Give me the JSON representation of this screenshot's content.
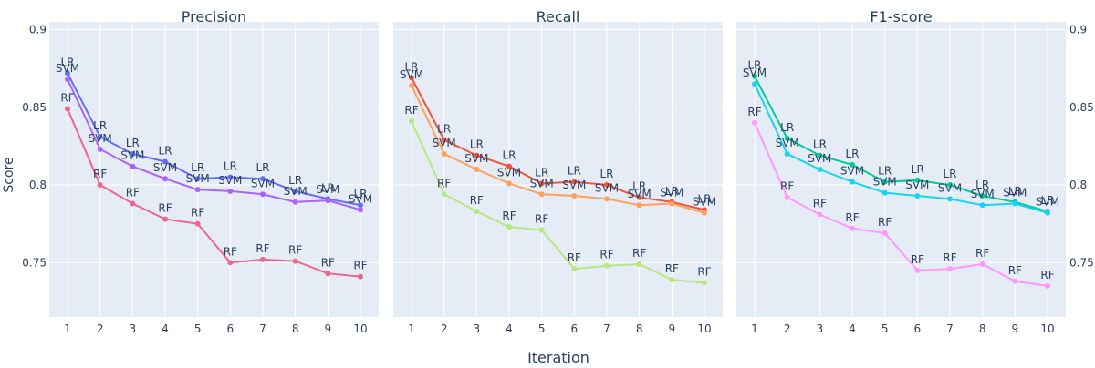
{
  "chart_data": {
    "type": "line",
    "xlabel": "Iteration",
    "ylabel": "Score",
    "x": [
      1,
      2,
      3,
      4,
      5,
      6,
      7,
      8,
      9,
      10
    ],
    "ylim": [
      0.715,
      0.905
    ],
    "yticks": [
      0.75,
      0.8,
      0.85,
      0.9
    ],
    "ytick_labels": [
      "0.75",
      "0.8",
      "0.85",
      "0.9"
    ],
    "grid": true,
    "legend": "none",
    "panels": [
      {
        "title": "Precision",
        "series": [
          {
            "label": "LR",
            "color": "#636efa",
            "values": [
              0.872,
              0.831,
              0.82,
              0.815,
              0.804,
              0.805,
              0.804,
              0.796,
              0.791,
              0.787
            ]
          },
          {
            "label": "SVM",
            "color": "#ab63fa",
            "values": [
              0.868,
              0.823,
              0.812,
              0.804,
              0.797,
              0.796,
              0.794,
              0.789,
              0.79,
              0.784
            ]
          },
          {
            "label": "RF",
            "color": "#f0648f",
            "values": [
              0.849,
              0.8,
              0.788,
              0.778,
              0.775,
              0.75,
              0.752,
              0.751,
              0.743,
              0.741
            ]
          }
        ]
      },
      {
        "title": "Recall",
        "series": [
          {
            "label": "LR",
            "color": "#ef553b",
            "values": [
              0.869,
              0.829,
              0.819,
              0.812,
              0.801,
              0.802,
              0.8,
              0.792,
              0.789,
              0.784
            ]
          },
          {
            "label": "SVM",
            "color": "#ffa15a",
            "values": [
              0.864,
              0.82,
              0.81,
              0.801,
              0.794,
              0.793,
              0.791,
              0.787,
              0.788,
              0.782
            ]
          },
          {
            "label": "RF",
            "color": "#b6e880",
            "values": [
              0.841,
              0.794,
              0.783,
              0.773,
              0.771,
              0.746,
              0.748,
              0.749,
              0.739,
              0.737
            ]
          }
        ]
      },
      {
        "title": "F1-score",
        "series": [
          {
            "label": "LR",
            "color": "#00cc96",
            "values": [
              0.87,
              0.83,
              0.819,
              0.813,
              0.802,
              0.803,
              0.8,
              0.793,
              0.789,
              0.783
            ]
          },
          {
            "label": "SVM",
            "color": "#19d3f3",
            "values": [
              0.865,
              0.82,
              0.81,
              0.802,
              0.795,
              0.793,
              0.791,
              0.787,
              0.788,
              0.782
            ]
          },
          {
            "label": "RF",
            "color": "#ff97ff",
            "values": [
              0.84,
              0.792,
              0.781,
              0.772,
              0.769,
              0.745,
              0.746,
              0.749,
              0.738,
              0.735
            ]
          }
        ]
      }
    ]
  }
}
